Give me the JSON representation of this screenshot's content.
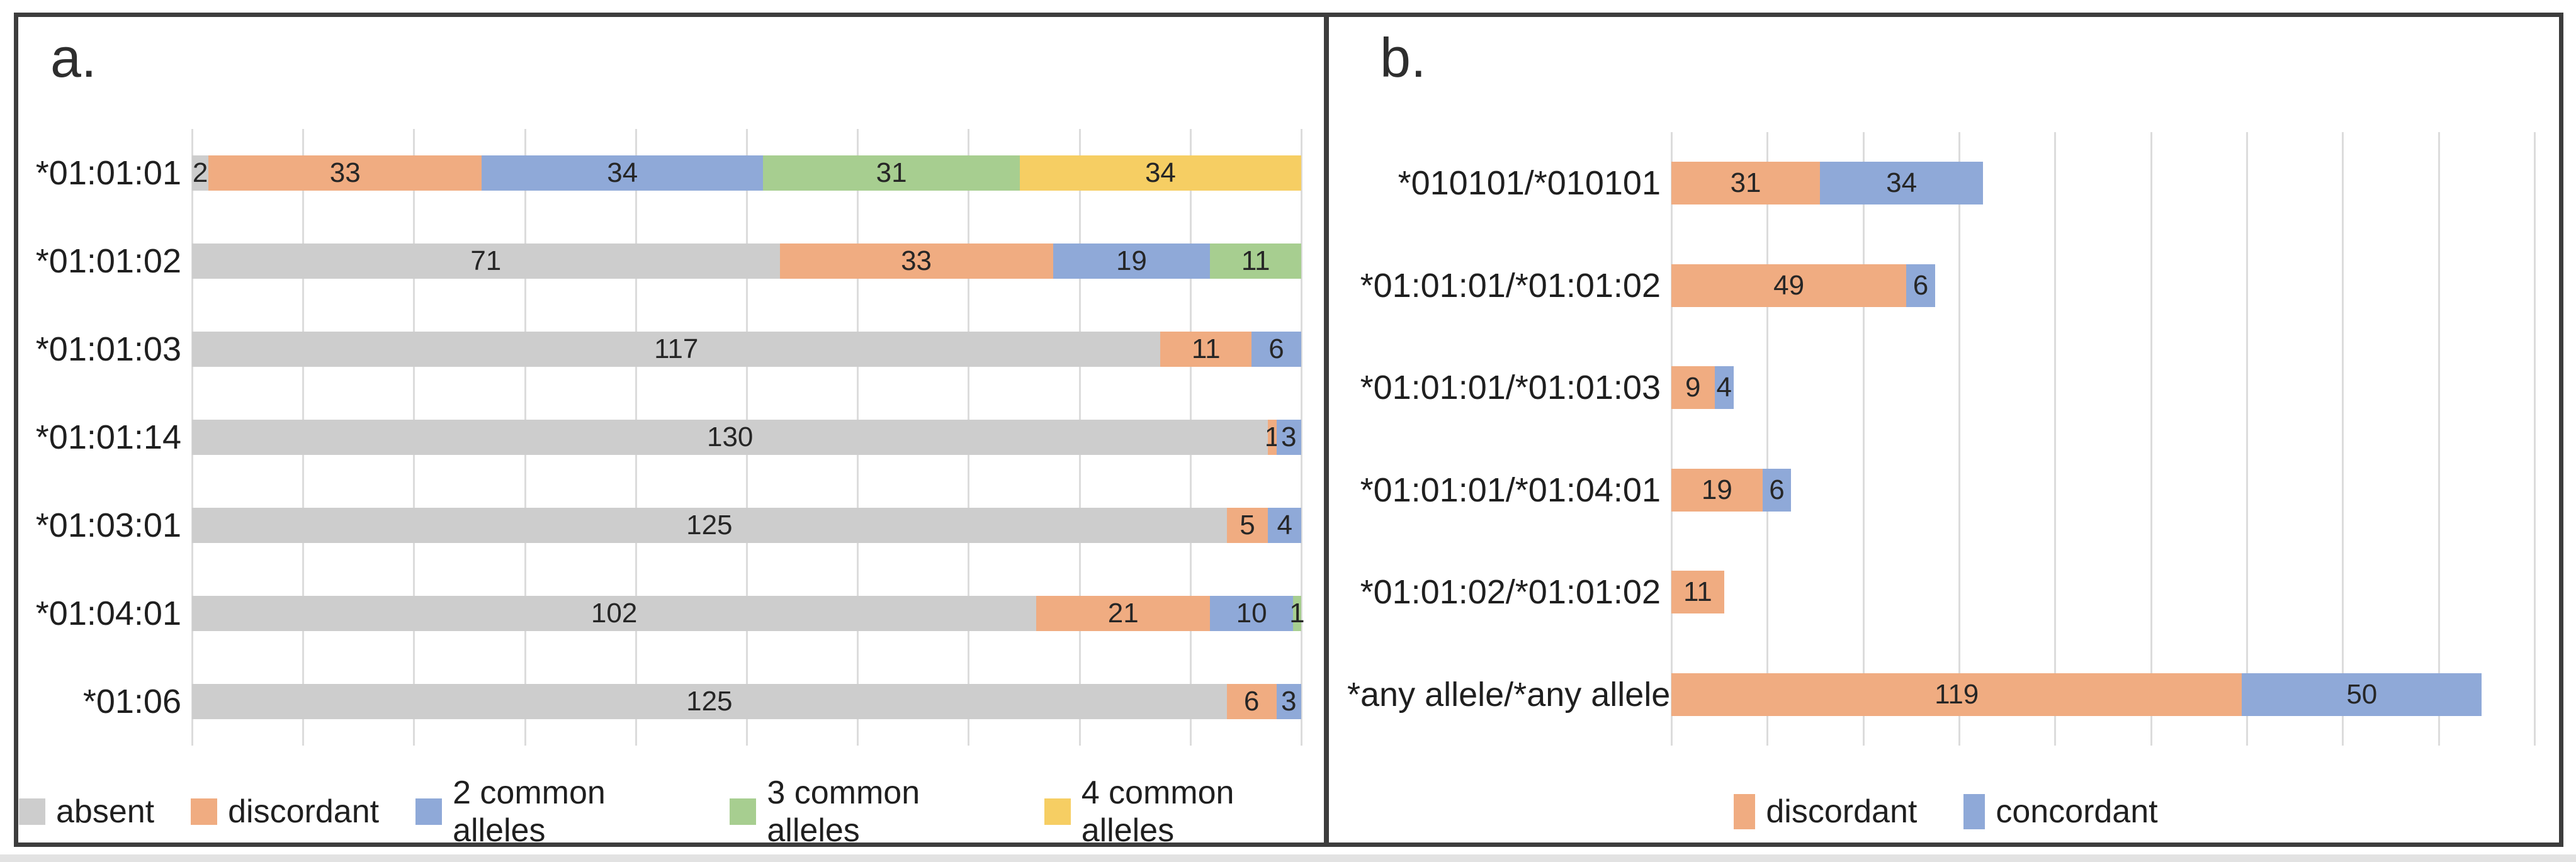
{
  "figure": {
    "background": "#ffffff",
    "border_color": "#3d3d3d"
  },
  "panels": [
    {
      "label": "a."
    },
    {
      "label": "b."
    }
  ],
  "colors": {
    "absent": "#cdcdcd",
    "discordant": "#f0ac81",
    "2 common alleles": "#8fa9d8",
    "3 common alleles": "#a7ce90",
    "4 common alleles": "#f6ce63",
    "concordant": "#8fa9d8",
    "gridline": "#dcdcdc",
    "value_label": "#262626",
    "text": "#1f1f1f"
  },
  "chart_data": [
    {
      "type": "bar",
      "orientation": "horizontal",
      "stacked": true,
      "panel": "a.",
      "categories": [
        "*01:01:01",
        "*01:01:02",
        "*01:01:03",
        "*01:01:14",
        "*01:03:01",
        "*01:04:01",
        "*01:06"
      ],
      "series": [
        {
          "name": "absent",
          "values": [
            2,
            71,
            117,
            130,
            125,
            102,
            125
          ]
        },
        {
          "name": "discordant",
          "values": [
            33,
            33,
            11,
            1,
            5,
            21,
            6
          ]
        },
        {
          "name": "2 common alleles",
          "values": [
            34,
            19,
            6,
            3,
            4,
            10,
            3
          ]
        },
        {
          "name": "3 common alleles",
          "values": [
            31,
            11,
            0,
            0,
            0,
            1,
            0
          ]
        },
        {
          "name": "4 common alleles",
          "values": [
            34,
            0,
            0,
            0,
            0,
            0,
            0
          ]
        }
      ],
      "row_totals": [
        134,
        134,
        134,
        134,
        134,
        134,
        134
      ],
      "xlim": [
        0,
        134
      ],
      "grid": true,
      "gridlines": {
        "count": 11
      },
      "value_labels": true,
      "legend": [
        "absent",
        "discordant",
        "2 common alleles",
        "3 common alleles",
        "4 common alleles"
      ],
      "legend_position": "bottom"
    },
    {
      "type": "bar",
      "orientation": "horizontal",
      "stacked": true,
      "panel": "b.",
      "categories": [
        "*010101/*010101",
        "*01:01:01/*01:01:02",
        "*01:01:01/*01:01:03",
        "*01:01:01/*01:04:01",
        "*01:01:02/*01:01:02",
        "*any allele/*any allele"
      ],
      "series": [
        {
          "name": "discordant",
          "values": [
            31,
            49,
            9,
            19,
            11,
            119
          ]
        },
        {
          "name": "concordant",
          "values": [
            34,
            6,
            4,
            6,
            0,
            50
          ]
        }
      ],
      "xlim": [
        0,
        180
      ],
      "grid": true,
      "gridlines": {
        "step": 20
      },
      "value_labels": true,
      "legend": [
        "discordant",
        "concordant"
      ],
      "legend_position": "bottom"
    }
  ]
}
